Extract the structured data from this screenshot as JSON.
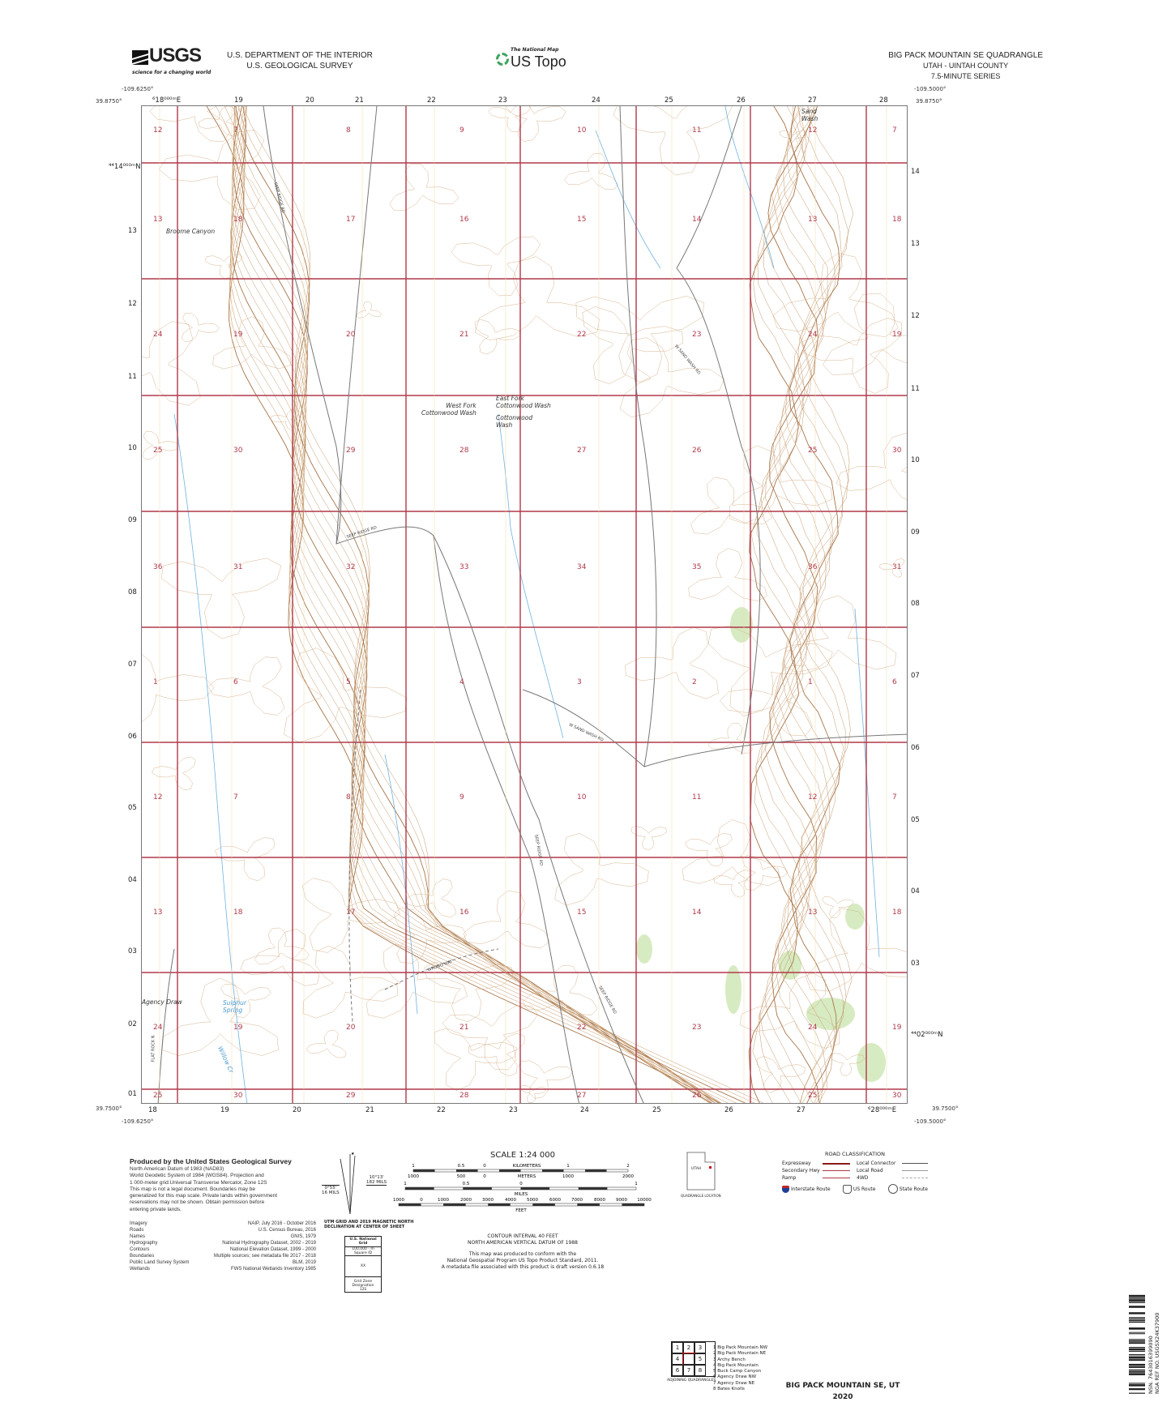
{
  "header": {
    "agency_logo_text": "USGS",
    "agency_tagline": "science for a changing world",
    "department": "U.S. DEPARTMENT OF THE INTERIOR",
    "survey": "U.S. GEOLOGICAL SURVEY",
    "program_small": "The National Map",
    "program_big": "US Topo",
    "quad_title": "BIG PACK MOUNTAIN SE QUADRANGLE",
    "quad_state_county": "UTAH - UINTAH COUNTY",
    "quad_series": "7.5-MINUTE SERIES"
  },
  "corners": {
    "nw_lon": "-109.6250°",
    "nw_lat": "39.8750°",
    "ne_lon": "-109.5000°",
    "ne_lat": "39.8750°",
    "sw_lon": "-109.6250°",
    "sw_lat": "39.7500°",
    "se_lon": "-109.5000°",
    "se_lat": "39.7500°"
  },
  "grid_ticks": {
    "top": [
      "⁶18⁰⁰⁰ᵐE",
      "19",
      "20",
      "21",
      "22",
      "23",
      "24",
      "25",
      "26",
      "27",
      "28"
    ],
    "bottom": [
      "18",
      "19",
      "20",
      "21",
      "22",
      "23",
      "24",
      "25",
      "26",
      "27",
      "⁶28⁰⁰⁰ᵐE"
    ],
    "left": [
      "⁴⁴14⁰⁰⁰ᵐN",
      "13",
      "12",
      "11",
      "10",
      "09",
      "08",
      "07",
      "06",
      "05",
      "04",
      "03",
      "02",
      "01"
    ],
    "right": [
      "14",
      "13",
      "12",
      "11",
      "10",
      "09",
      "08",
      "07",
      "06",
      "05",
      "04",
      "03",
      "⁴⁴02⁰⁰⁰ᵐN"
    ]
  },
  "sections": [
    [
      "12",
      "7",
      "8",
      "9",
      "10",
      "11",
      "12",
      "7"
    ],
    [
      "13",
      "18",
      "17",
      "16",
      "15",
      "14",
      "13",
      "18"
    ],
    [
      "24",
      "19",
      "20",
      "21",
      "22",
      "23",
      "24",
      "19"
    ],
    [
      "25",
      "30",
      "29",
      "28",
      "27",
      "26",
      "25",
      "30"
    ],
    [
      "36",
      "31",
      "32",
      "33",
      "34",
      "35",
      "36",
      "31"
    ],
    [
      "1",
      "6",
      "5",
      "4",
      "3",
      "2",
      "1",
      "6"
    ],
    [
      "12",
      "7",
      "8",
      "9",
      "10",
      "11",
      "12",
      "7"
    ],
    [
      "13",
      "18",
      "17",
      "16",
      "15",
      "14",
      "13",
      "18"
    ],
    [
      "24",
      "19",
      "20",
      "21",
      "22",
      "23",
      "24",
      "19"
    ],
    [
      "25",
      "30",
      "29",
      "28",
      "27",
      "26",
      "25",
      "30"
    ]
  ],
  "places": {
    "sand_wash": "Sand\nWash",
    "broome_canyon": "Broome Canyon",
    "west_fork": "West Fork\nCottonwood Wash",
    "east_fork": "East Fork\nCottonwood Wash",
    "cottonwood_wash": "Cottonwood\nWash",
    "agency_draw": "Agency Draw",
    "sulphur_spring": "Sulphur\nSpring",
    "willow_cr": "Willow Cr"
  },
  "roads": {
    "seep_ridge_1": "SEEP RIDGE RD",
    "seep_ridge_2": "SEEP RIDGE RD",
    "seep_ridge_3": "SEEP RIDGE RD",
    "seep_ridge_4": "SEEP RIDGE RD",
    "w_sand_wash_1": "W SAND WASH RD",
    "w_sand_wash_2": "W SAND WASH RD",
    "flat_rock": "FLAT ROCK N",
    "wrong_way": "WRONG WAY"
  },
  "credits": {
    "produced_by": "Produced by the United States Geological Survey",
    "lines": [
      "North American Datum of 1983 (NAD83)",
      "World Geodetic System of 1984 (WGS84). Projection and",
      "1 000-meter grid:Universal Transverse Mercator, Zone 12S",
      "This map is not a legal document. Boundaries may be",
      "generalized for this map scale. Private lands within government",
      "reservations may not be shown. Obtain permission before",
      "entering private lands."
    ],
    "sources": [
      {
        "name": "Imagery",
        "value": "NAIP, July 2016 - October 2016"
      },
      {
        "name": "Roads",
        "value": "U.S. Census Bureau, 2016"
      },
      {
        "name": "Names",
        "value": "GNIS, 1979"
      },
      {
        "name": "Hydrography",
        "value": "National Hydrography Dataset, 2002 - 2019"
      },
      {
        "name": "Contours",
        "value": "National Elevation Dataset, 1999 - 2000"
      },
      {
        "name": "Boundaries",
        "value": "Multiple sources; see metadata file 2017 - 2018"
      },
      {
        "name": "Public Land Survey System",
        "value": "BLM, 2019"
      },
      {
        "name": "Wetlands",
        "value": "FWS National Wetlands Inventory 1985"
      }
    ]
  },
  "declination": {
    "angle1": "0°55'",
    "mils1": "16 MILS",
    "angle2": "10°13'",
    "mils2": "182 MILS",
    "caption": "UTM GRID AND 2019 MAGNETIC NORTH\nDECLINATION AT CENTER OF SHEET",
    "grid_box_title": "U.S. National Grid",
    "grid_box_sub": "100,000 - m Square ID",
    "grid_box_id": "XX",
    "grid_zone_label": "Grid Zone Designation",
    "grid_zone": "12S"
  },
  "scale": {
    "title": "SCALE 1:24 000",
    "km_labels": [
      "1",
      "0.5",
      "0",
      "KILOMETERS",
      "1",
      "2"
    ],
    "m_labels": [
      "1000",
      "500",
      "0",
      "METERS",
      "1000",
      "2000"
    ],
    "mi_labels": [
      "1",
      "0.5",
      "0",
      "MILES",
      "1"
    ],
    "ft_labels": [
      "1000",
      "0",
      "1000",
      "2000",
      "3000",
      "4000",
      "5000",
      "6000",
      "7000",
      "8000",
      "9000",
      "10000"
    ],
    "ft_unit": "FEET"
  },
  "notes": {
    "contour": "CONTOUR INTERVAL 40 FEET",
    "datum": "NORTH AMERICAN VERTICAL DATUM OF 1988",
    "conform1": "This map was produced to conform with the",
    "conform2": "National Geospatial Program US Topo Product Standard, 2011.",
    "conform3": "A metadata file associated with this product is draft version 0.6.18"
  },
  "location": {
    "state": "UTAH",
    "caption": "QUADRANGLE LOCATION"
  },
  "adjoining": {
    "caption": "ADJOINING QUADRANGLES",
    "cells": [
      "1",
      "2",
      "3",
      "4",
      "",
      "5",
      "6",
      "7",
      "8"
    ],
    "list": [
      "1 Big Pack Mountain NW",
      "2 Big Pack Mountain NE",
      "3 Archy Bench",
      "4 Big Pack Mountain",
      "5 Buck Camp Canyon",
      "6 Agency Draw NW",
      "7 Agency Draw NE",
      "8 Bates Knolls"
    ]
  },
  "road_legend": {
    "title": "ROAD CLASSIFICATION",
    "expressway": "Expressway",
    "secondary": "Secondary Hwy",
    "ramp": "Ramp",
    "local_connector": "Local Connector",
    "local_road": "Local Road",
    "fourwd": "4WD",
    "interstate": "Interstate Route",
    "us_route": "US Route",
    "state_route": "State Route"
  },
  "footer": {
    "quad_name": "BIG PACK MOUNTAIN SE,  UT",
    "year": "2020",
    "nsn": "NSN. 7643016399090",
    "nga_ref": "NGA REF NO. USGSX24K37900"
  },
  "colors": {
    "section_line": "#b0394a",
    "contour": "#c59a6d",
    "index_contour": "#a8764a",
    "water": "#6fb3e0",
    "road": "#666666",
    "vegetation": "#cfe8b5"
  }
}
